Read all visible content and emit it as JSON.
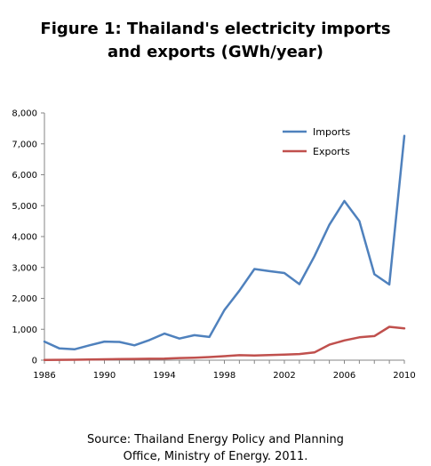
{
  "title": {
    "line1": "Figure 1: Thailand's electricity imports",
    "line2": "and exports (GWh/year)"
  },
  "source": {
    "line1": "Source: Thailand Energy Policy and Planning",
    "line2": "Office, Ministry of Energy. 2011."
  },
  "chart_data": {
    "type": "line",
    "title": "Figure 1: Thailand's electricity imports and exports (GWh/year)",
    "xlabel": "",
    "ylabel": "",
    "x": [
      1986,
      1987,
      1988,
      1989,
      1990,
      1991,
      1992,
      1993,
      1994,
      1995,
      1996,
      1997,
      1998,
      1999,
      2000,
      2001,
      2002,
      2003,
      2004,
      2005,
      2006,
      2007,
      2008,
      2009,
      2010
    ],
    "xlim": [
      1986,
      2010
    ],
    "ylim": [
      0,
      8000
    ],
    "x_ticks": [
      1986,
      1990,
      1994,
      1998,
      2002,
      2006,
      2010
    ],
    "y_ticks": [
      0,
      1000,
      2000,
      3000,
      4000,
      5000,
      6000,
      7000,
      8000
    ],
    "y_tick_labels": [
      "0",
      "1,000",
      "2,000",
      "3,000",
      "4,000",
      "5,000",
      "6,000",
      "7,000",
      "8,000"
    ],
    "grid": false,
    "legend_position": "top-right",
    "series": [
      {
        "name": "Imports",
        "color": "#4f81bd",
        "values": [
          600,
          380,
          350,
          480,
          600,
          590,
          480,
          650,
          860,
          700,
          810,
          750,
          1620,
          2250,
          2950,
          2880,
          2820,
          2460,
          3360,
          4380,
          5150,
          4500,
          2780,
          2450,
          7260
        ]
      },
      {
        "name": "Exports",
        "color": "#c0504d",
        "values": [
          10,
          12,
          15,
          20,
          30,
          35,
          40,
          45,
          50,
          70,
          80,
          100,
          130,
          160,
          150,
          165,
          180,
          200,
          250,
          500,
          640,
          740,
          780,
          1080,
          1030
        ]
      }
    ]
  }
}
